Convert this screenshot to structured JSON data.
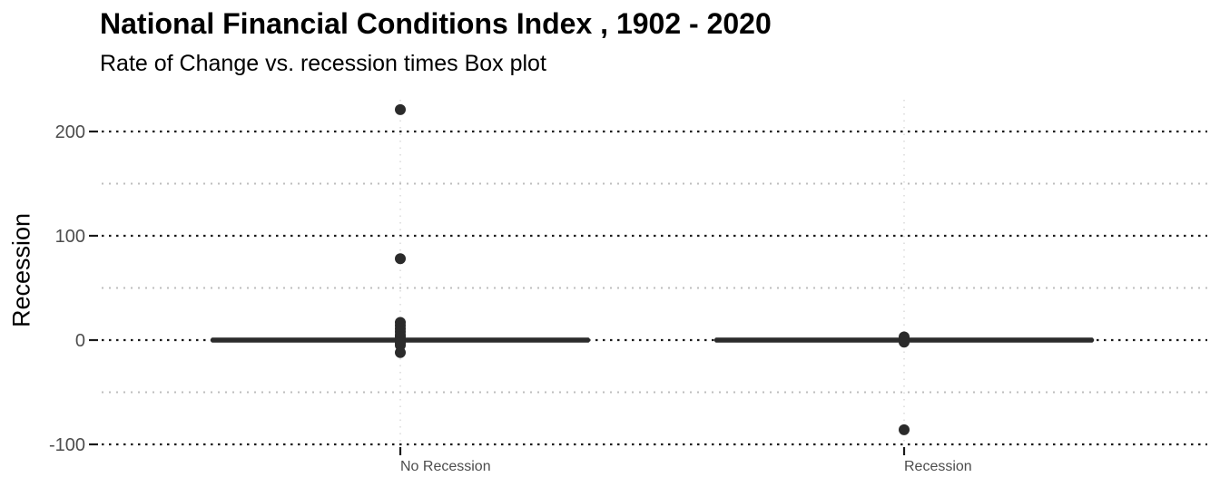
{
  "chart_data": {
    "type": "box",
    "title": "National Financial Conditions Index , 1902 - 2020",
    "subtitle": "Rate of Change vs. recession times Box plot",
    "xlabel": "",
    "ylabel": "Recession",
    "ylim": [
      -100,
      200
    ],
    "yticks": [
      -100,
      0,
      100,
      200
    ],
    "grid": true,
    "categories": [
      "No Recession",
      "Recession"
    ],
    "boxes": [
      {
        "category": "No Recession",
        "q1": 0,
        "median": 0,
        "q3": 0,
        "whisker_low": 0,
        "whisker_high": 0,
        "outliers": [
          221,
          78,
          17,
          14,
          11,
          8,
          5,
          3,
          1,
          -1,
          -3,
          -5,
          -12
        ]
      },
      {
        "category": "Recession",
        "q1": 0,
        "median": 0,
        "q3": 0,
        "whisker_low": 0,
        "whisker_high": 0,
        "outliers": [
          3,
          1,
          -1,
          -2,
          -86
        ]
      }
    ]
  }
}
